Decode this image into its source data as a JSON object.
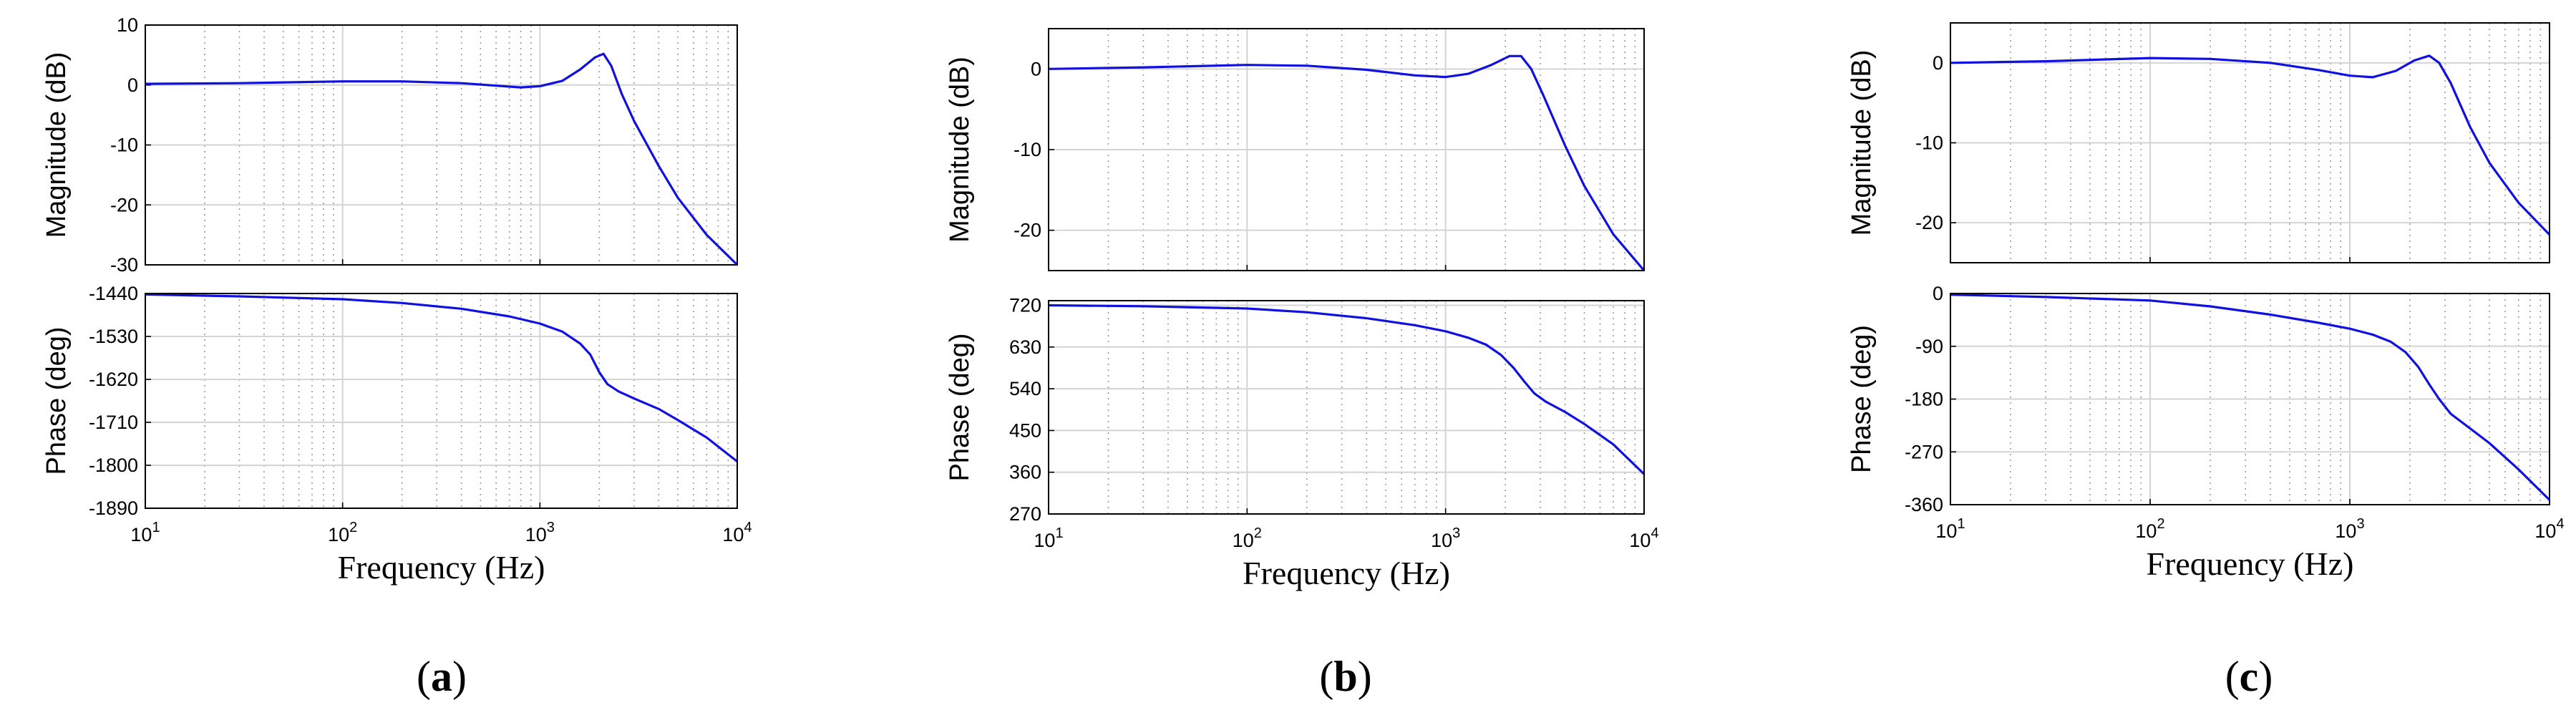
{
  "chart_data": [
    {
      "panel": "a",
      "label_parts": [
        "(",
        "a",
        ")"
      ],
      "type": "line",
      "xlabel": "Frequency (Hz)",
      "xscale": "log",
      "xlim": [
        10,
        10000
      ],
      "xticks": [
        {
          "value": 10,
          "base": "10",
          "exp": "1"
        },
        {
          "value": 100,
          "base": "10",
          "exp": "2"
        },
        {
          "value": 1000,
          "base": "10",
          "exp": "3"
        },
        {
          "value": 10000,
          "base": "10",
          "exp": "4"
        }
      ],
      "magnitude": {
        "ylabel": "Magnitude (dB)",
        "ylim": [
          -30,
          10
        ],
        "yticks": [
          10,
          0,
          -10,
          -20,
          -30
        ],
        "x": [
          10,
          30,
          100,
          200,
          400,
          800,
          1000,
          1300,
          1600,
          1900,
          2100,
          2300,
          2600,
          3000,
          4000,
          5000,
          7000,
          10000
        ],
        "y": [
          0.2,
          0.3,
          0.6,
          0.6,
          0.3,
          -0.4,
          -0.2,
          0.7,
          2.6,
          4.6,
          5.2,
          3.2,
          -1.5,
          -6.0,
          -13.5,
          -18.8,
          -25.0,
          -30.0
        ]
      },
      "phase": {
        "ylabel": "Phase (deg)",
        "ylim": [
          -1890,
          -1440
        ],
        "yticks": [
          -1440,
          -1530,
          -1620,
          -1710,
          -1800,
          -1890
        ],
        "x": [
          10,
          30,
          100,
          200,
          400,
          700,
          1000,
          1300,
          1600,
          1800,
          2000,
          2200,
          2500,
          3000,
          4000,
          5000,
          7000,
          10000
        ],
        "y": [
          -1442,
          -1446,
          -1452,
          -1460,
          -1472,
          -1488,
          -1503,
          -1520,
          -1545,
          -1568,
          -1605,
          -1630,
          -1645,
          -1660,
          -1682,
          -1705,
          -1742,
          -1792
        ]
      }
    },
    {
      "panel": "b",
      "label_parts": [
        "(",
        "b",
        ")"
      ],
      "type": "line",
      "xlabel": "Frequency (Hz)",
      "xscale": "log",
      "xlim": [
        10,
        10000
      ],
      "xticks": [
        {
          "value": 10,
          "base": "10",
          "exp": "1"
        },
        {
          "value": 100,
          "base": "10",
          "exp": "2"
        },
        {
          "value": 1000,
          "base": "10",
          "exp": "3"
        },
        {
          "value": 10000,
          "base": "10",
          "exp": "4"
        }
      ],
      "magnitude": {
        "ylabel": "Magnitude (dB)",
        "ylim": [
          -25,
          5
        ],
        "yticks": [
          0,
          -10,
          -20
        ],
        "x": [
          10,
          30,
          100,
          200,
          400,
          700,
          1000,
          1300,
          1700,
          2100,
          2400,
          2700,
          3100,
          4000,
          5000,
          7000,
          10000
        ],
        "y": [
          0.0,
          0.2,
          0.5,
          0.4,
          -0.1,
          -0.8,
          -1.0,
          -0.6,
          0.5,
          1.6,
          1.6,
          0.0,
          -3.2,
          -9.5,
          -14.5,
          -20.5,
          -25.0
        ]
      },
      "phase": {
        "ylabel": "Phase (deg)",
        "ylim": [
          270,
          730
        ],
        "yticks": [
          720,
          630,
          540,
          450,
          360,
          270
        ],
        "x": [
          10,
          30,
          100,
          200,
          400,
          700,
          1000,
          1300,
          1600,
          1900,
          2200,
          2500,
          2800,
          3200,
          4000,
          5000,
          7000,
          10000
        ],
        "y": [
          720,
          718,
          713,
          705,
          692,
          677,
          664,
          650,
          635,
          613,
          585,
          555,
          530,
          512,
          490,
          464,
          420,
          356
        ]
      }
    },
    {
      "panel": "c",
      "label_parts": [
        "(",
        "c",
        ")"
      ],
      "type": "line",
      "xlabel": "Frequency (Hz)",
      "xscale": "log",
      "xlim": [
        10,
        10000
      ],
      "xticks": [
        {
          "value": 10,
          "base": "10",
          "exp": "1"
        },
        {
          "value": 100,
          "base": "10",
          "exp": "2"
        },
        {
          "value": 1000,
          "base": "10",
          "exp": "3"
        },
        {
          "value": 10000,
          "base": "10",
          "exp": "4"
        }
      ],
      "magnitude": {
        "ylabel": "Magnitude (dB)",
        "ylim": [
          -25,
          5
        ],
        "yticks": [
          0,
          -10,
          -20
        ],
        "x": [
          10,
          30,
          100,
          200,
          400,
          700,
          1000,
          1300,
          1700,
          2100,
          2500,
          2800,
          3200,
          4000,
          5000,
          7000,
          10000
        ],
        "y": [
          0.0,
          0.2,
          0.6,
          0.5,
          0.0,
          -0.9,
          -1.6,
          -1.8,
          -1.0,
          0.3,
          0.9,
          0.0,
          -2.5,
          -8.0,
          -12.5,
          -17.5,
          -21.5
        ]
      },
      "phase": {
        "ylabel": "Phase (deg)",
        "ylim": [
          -360,
          0
        ],
        "yticks": [
          0,
          -90,
          -180,
          -270,
          -360
        ],
        "x": [
          10,
          30,
          100,
          200,
          400,
          700,
          1000,
          1300,
          1600,
          1900,
          2200,
          2500,
          2800,
          3200,
          4000,
          5000,
          7000,
          10000
        ],
        "y": [
          -2,
          -6,
          -12,
          -22,
          -36,
          -50,
          -60,
          -70,
          -82,
          -100,
          -125,
          -155,
          -180,
          -205,
          -230,
          -255,
          -300,
          -352
        ]
      }
    }
  ]
}
